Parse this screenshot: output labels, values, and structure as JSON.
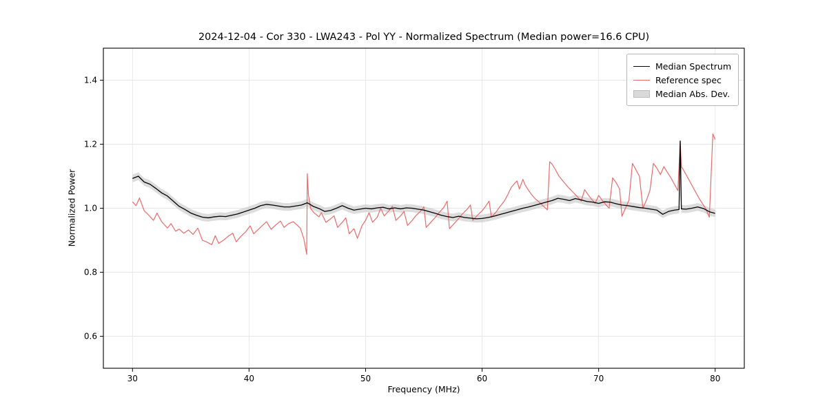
{
  "figure": {
    "title": "2024-12-04 - Cor 330 - LWA243 - Pol YY - Normalized Spectrum (Median power=16.6 CPU)",
    "xlabel": "Frequency (MHz)",
    "ylabel": "Normalized Power"
  },
  "chart_data": {
    "type": "line",
    "title": "2024-12-04 - Cor 330 - LWA243 - Pol YY - Normalized Spectrum (Median power=16.6 CPU)",
    "xlabel": "Frequency (MHz)",
    "ylabel": "Normalized Power",
    "xlim": [
      27.5,
      82.5
    ],
    "ylim": [
      0.5,
      1.5
    ],
    "xticks": [
      30,
      40,
      50,
      60,
      70,
      80
    ],
    "xtick_labels": [
      "30",
      "40",
      "50",
      "60",
      "70",
      "80"
    ],
    "yticks": [
      0.6,
      0.8,
      1.0,
      1.2,
      1.4
    ],
    "ytick_labels": [
      "0.6",
      "0.8",
      "1.0",
      "1.2",
      "1.4"
    ],
    "grid": true,
    "grid_color": "#e6e6e6",
    "legend_position": "upper right",
    "legend": [
      {
        "label": "Median Spectrum",
        "swatch": "line",
        "color": "#000000"
      },
      {
        "label": "Reference spec",
        "swatch": "line",
        "color": "#e96a6a"
      },
      {
        "label": "Median Abs. Dev.",
        "swatch": "patch",
        "color": "#d9d9d9"
      }
    ],
    "band": {
      "name": "Median Abs. Dev.",
      "around": "Median Spectrum",
      "halfwidth": 0.012,
      "color": "#c9c9c9",
      "opacity": 0.65
    },
    "series": [
      {
        "name": "Median Spectrum",
        "color": "#000000",
        "width": 1.3,
        "x": [
          30.0,
          30.5,
          31.0,
          31.5,
          32.0,
          32.5,
          33.0,
          33.5,
          34.0,
          34.5,
          35.0,
          35.5,
          36.0,
          36.5,
          37.0,
          37.5,
          38.0,
          38.5,
          39.0,
          39.5,
          40.0,
          40.5,
          41.0,
          41.5,
          42.0,
          42.5,
          43.0,
          43.5,
          44.0,
          44.5,
          45.0,
          45.5,
          46.0,
          46.5,
          47.0,
          47.5,
          48.0,
          48.5,
          49.0,
          49.5,
          50.0,
          50.5,
          51.0,
          51.5,
          52.0,
          52.5,
          53.0,
          53.5,
          54.0,
          54.5,
          55.0,
          55.5,
          56.0,
          56.5,
          57.0,
          57.5,
          58.0,
          58.5,
          59.0,
          59.5,
          60.0,
          60.5,
          61.0,
          61.5,
          62.0,
          62.5,
          63.0,
          63.5,
          64.0,
          64.5,
          65.0,
          65.5,
          66.0,
          66.5,
          67.0,
          67.5,
          68.0,
          68.5,
          69.0,
          69.5,
          70.0,
          70.5,
          71.0,
          71.5,
          72.0,
          72.5,
          73.0,
          73.5,
          74.0,
          74.5,
          75.0,
          75.5,
          76.0,
          76.5,
          76.9,
          77.0,
          77.1,
          77.5,
          78.0,
          78.5,
          79.0,
          79.5,
          80.0
        ],
        "y": [
          1.093,
          1.1,
          1.082,
          1.075,
          1.062,
          1.048,
          1.038,
          1.022,
          1.006,
          0.996,
          0.985,
          0.978,
          0.972,
          0.97,
          0.973,
          0.975,
          0.974,
          0.978,
          0.982,
          0.988,
          0.994,
          1.0,
          1.008,
          1.012,
          1.01,
          1.007,
          1.004,
          1.004,
          1.007,
          1.01,
          1.017,
          1.006,
          0.999,
          0.99,
          0.993,
          1.0,
          1.008,
          1.0,
          0.994,
          0.997,
          1.0,
          0.998,
          1.001,
          1.003,
          0.998,
          1.001,
          0.998,
          1.001,
          1.0,
          0.997,
          0.994,
          0.989,
          0.984,
          0.978,
          0.974,
          0.971,
          0.975,
          0.971,
          0.969,
          0.967,
          0.968,
          0.971,
          0.975,
          0.98,
          0.985,
          0.99,
          0.995,
          1.0,
          1.004,
          1.009,
          1.014,
          1.019,
          1.024,
          1.031,
          1.028,
          1.024,
          1.03,
          1.026,
          1.021,
          1.019,
          1.015,
          1.02,
          1.019,
          1.014,
          1.01,
          1.008,
          1.005,
          1.002,
          1.0,
          0.997,
          0.994,
          0.981,
          0.99,
          0.994,
          0.996,
          1.21,
          0.998,
          0.997,
          1.0,
          1.004,
          0.999,
          0.989,
          0.984
        ]
      },
      {
        "name": "Reference spec",
        "color": "#e96a6a",
        "width": 1.2,
        "x": [
          30.0,
          30.3,
          30.6,
          31.0,
          31.4,
          31.8,
          32.1,
          32.5,
          33.0,
          33.3,
          33.7,
          34.0,
          34.4,
          34.8,
          35.2,
          35.6,
          36.0,
          36.4,
          36.8,
          37.1,
          37.4,
          37.8,
          38.2,
          38.6,
          38.9,
          39.3,
          39.7,
          40.1,
          40.4,
          40.8,
          41.2,
          41.5,
          41.9,
          42.3,
          42.7,
          43.0,
          43.4,
          43.8,
          44.1,
          44.4,
          44.7,
          44.95,
          45.0,
          45.1,
          45.3,
          45.6,
          46.0,
          46.2,
          46.6,
          47.0,
          47.3,
          47.6,
          48.0,
          48.3,
          48.6,
          49.0,
          49.3,
          49.7,
          50.0,
          50.3,
          50.6,
          51.0,
          51.3,
          51.6,
          52.0,
          52.3,
          52.6,
          53.0,
          53.3,
          53.6,
          54.0,
          54.3,
          54.7,
          55.0,
          55.2,
          55.6,
          56.0,
          56.3,
          56.7,
          57.0,
          57.2,
          57.6,
          58.0,
          58.3,
          58.7,
          59.0,
          59.2,
          59.6,
          60.0,
          60.3,
          60.6,
          60.8,
          61.2,
          61.5,
          61.9,
          62.2,
          62.5,
          62.8,
          63.0,
          63.2,
          63.5,
          63.7,
          64.0,
          64.3,
          64.6,
          65.0,
          65.3,
          65.6,
          65.8,
          66.0,
          66.3,
          66.6,
          67.0,
          67.4,
          67.8,
          68.2,
          68.5,
          68.8,
          69.1,
          69.4,
          69.7,
          70.0,
          70.3,
          70.6,
          70.9,
          71.2,
          71.5,
          71.8,
          72.0,
          72.3,
          72.6,
          72.9,
          73.2,
          73.5,
          73.8,
          74.1,
          74.4,
          74.7,
          75.0,
          75.3,
          75.6,
          75.9,
          76.2,
          76.5,
          76.8,
          77.0,
          77.1,
          77.4,
          77.7,
          78.0,
          78.3,
          78.6,
          78.9,
          79.2,
          79.5,
          79.8,
          80.0
        ],
        "y": [
          1.02,
          1.008,
          1.032,
          0.992,
          0.978,
          0.962,
          0.985,
          0.958,
          0.938,
          0.952,
          0.928,
          0.935,
          0.922,
          0.932,
          0.918,
          0.938,
          0.9,
          0.894,
          0.886,
          0.914,
          0.89,
          0.9,
          0.912,
          0.922,
          0.895,
          0.912,
          0.926,
          0.945,
          0.92,
          0.934,
          0.948,
          0.958,
          0.934,
          0.948,
          0.96,
          0.94,
          0.952,
          0.958,
          0.948,
          0.938,
          0.905,
          0.856,
          1.108,
          1.04,
          0.998,
          0.985,
          0.973,
          0.986,
          0.956,
          0.967,
          0.976,
          0.94,
          0.956,
          0.97,
          0.92,
          0.936,
          0.906,
          0.946,
          0.962,
          0.986,
          0.956,
          0.972,
          1.0,
          0.976,
          0.992,
          1.006,
          0.962,
          0.976,
          0.99,
          0.946,
          0.962,
          0.976,
          0.99,
          1.004,
          0.94,
          0.956,
          0.972,
          0.986,
          1.002,
          1.022,
          0.936,
          0.952,
          0.968,
          0.982,
          0.996,
          1.01,
          0.962,
          0.978,
          0.992,
          1.006,
          1.022,
          0.972,
          0.988,
          1.004,
          1.022,
          1.042,
          1.065,
          1.078,
          1.085,
          1.06,
          1.09,
          1.072,
          1.055,
          1.04,
          1.028,
          1.016,
          1.005,
          0.995,
          1.145,
          1.138,
          1.12,
          1.1,
          1.082,
          1.065,
          1.05,
          1.035,
          1.022,
          1.058,
          1.042,
          1.028,
          1.015,
          1.04,
          1.025,
          1.012,
          1.0,
          1.095,
          1.08,
          1.06,
          0.975,
          1.0,
          1.025,
          1.14,
          1.12,
          1.1,
          1.0,
          1.025,
          1.055,
          1.14,
          1.125,
          1.105,
          1.13,
          1.112,
          1.095,
          1.075,
          1.055,
          1.21,
          1.13,
          1.112,
          1.092,
          1.072,
          1.052,
          1.032,
          1.015,
          0.998,
          0.972,
          1.232,
          1.215
        ]
      }
    ]
  }
}
